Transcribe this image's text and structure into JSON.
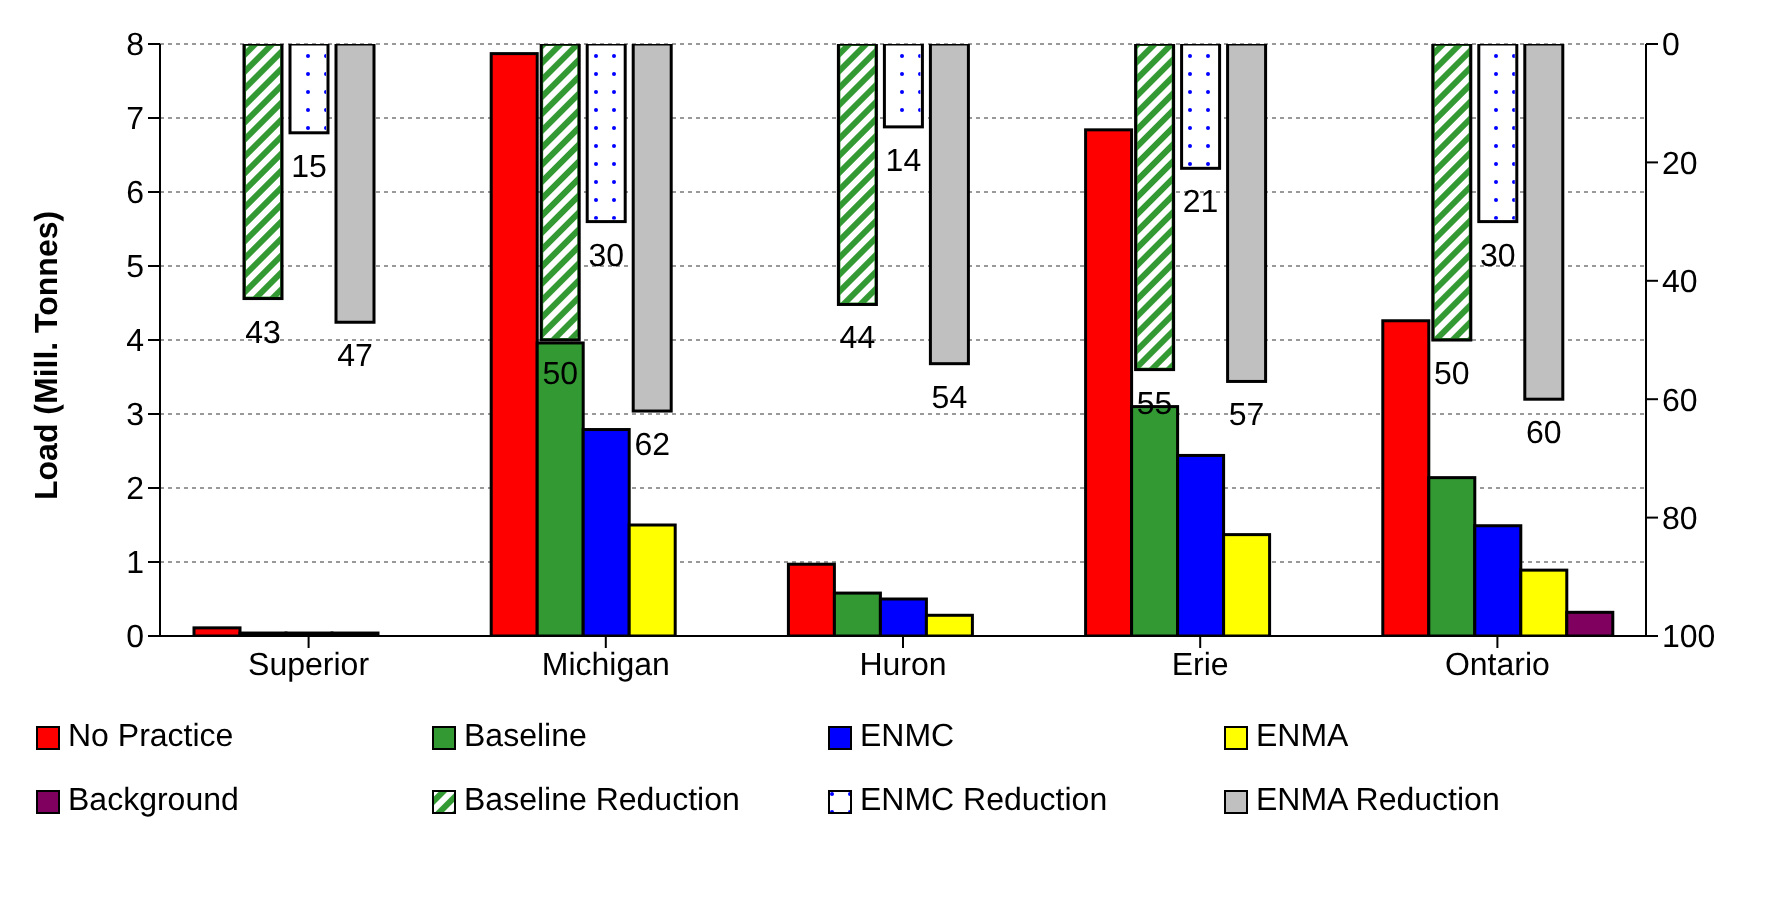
{
  "chart_data": {
    "type": "bar",
    "ylabel": "Load (Mill. Tonnes)",
    "categories": [
      "Superior",
      "Michigan",
      "Huron",
      "Erie",
      "Ontario"
    ],
    "series": [
      {
        "name": "No Practice",
        "color": "#ff0000",
        "values": [
          0.11,
          7.87,
          0.97,
          6.84,
          4.26
        ]
      },
      {
        "name": "Baseline",
        "color": "#339933",
        "values": [
          0.04,
          3.96,
          0.58,
          3.1,
          2.14
        ]
      },
      {
        "name": "ENMC",
        "color": "#0000ff",
        "values": [
          0.04,
          2.79,
          0.5,
          2.44,
          1.49
        ]
      },
      {
        "name": "ENMA",
        "color": "#ffff00",
        "values": [
          0.04,
          1.5,
          0.28,
          1.37,
          0.89
        ]
      },
      {
        "name": "Background",
        "color": "#800060",
        "values": [
          null,
          null,
          null,
          null,
          0.32
        ]
      },
      {
        "name": "Baseline Reduction",
        "color": "#339933",
        "axis": "y2",
        "values": [
          43,
          50,
          44,
          55,
          50
        ],
        "value_labels": [
          "43",
          "50",
          "44",
          "55",
          "50"
        ]
      },
      {
        "name": "ENMC Reduction",
        "color": "#ffffff",
        "axis": "y2",
        "values": [
          15,
          30,
          14,
          21,
          30
        ],
        "value_labels": [
          "15",
          "30",
          "14",
          "21",
          "30"
        ]
      },
      {
        "name": "ENMA Reduction",
        "color": "#c0c0c0",
        "axis": "y2",
        "values": [
          47,
          62,
          54,
          57,
          60
        ],
        "value_labels": [
          "47",
          "62",
          "54",
          "57",
          "60"
        ]
      }
    ],
    "ylim": [
      0,
      8
    ],
    "yticks": [
      0,
      1,
      2,
      3,
      4,
      5,
      6,
      7,
      8
    ],
    "y2lim": [
      100,
      0
    ],
    "y2ticks": [
      0,
      20,
      40,
      60,
      80,
      100
    ],
    "grid": "y",
    "legend": "bottom"
  }
}
